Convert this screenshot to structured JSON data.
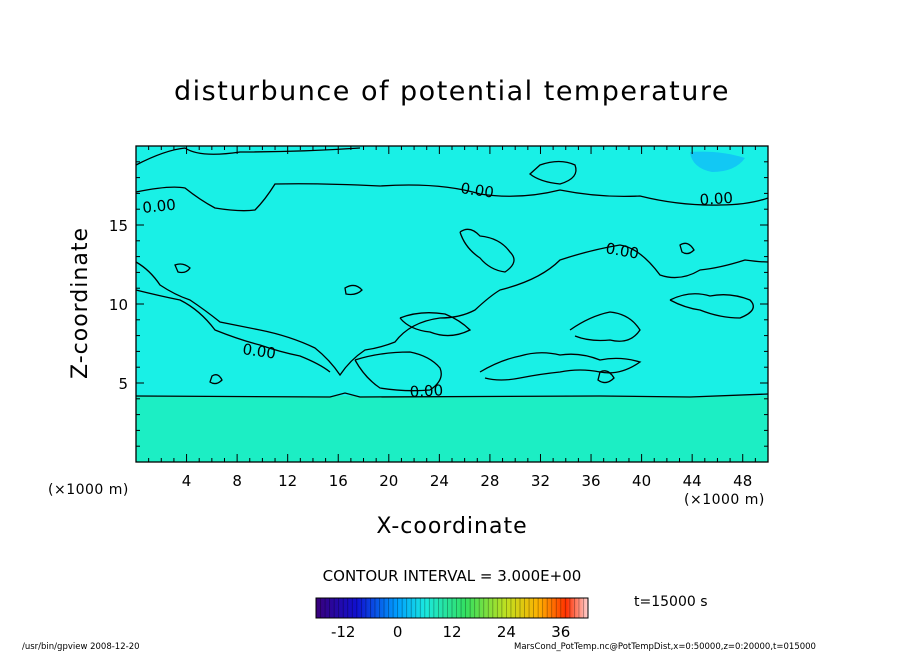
{
  "chart_data": {
    "type": "heatmap",
    "title": "disturbunce of potential temperature",
    "xlabel": "X-coordinate",
    "ylabel": "Z-coordinate",
    "x_unit": "(×1000 m)",
    "xlim": [
      0,
      50
    ],
    "ylim": [
      0,
      20
    ],
    "x_ticks": [
      "4",
      "8",
      "12",
      "16",
      "20",
      "24",
      "28",
      "32",
      "36",
      "40",
      "44",
      "48"
    ],
    "y_ticks": [
      "5",
      "10",
      "15"
    ],
    "contour_label": "0.00",
    "contour_interval": "CONTOUR INTERVAL = 3.000E+00",
    "colorbar": {
      "tick_labels": [
        "-12",
        "0",
        "12",
        "24",
        "36"
      ],
      "range": [
        -18,
        42
      ]
    },
    "time_label": "t=15000 s",
    "zero_contour_regions": [
      "lower layer boundary near z=4.2",
      "upper layer boundaries between z=8 and z=19"
    ]
  },
  "footer": {
    "left": "/usr/bin/gpview   2008-12-20",
    "right": "MarsCond_PotTemp.nc@PotTempDist,x=0:50000,z=0:20000,t=015000"
  },
  "colors": {
    "upper_field": "#19f0e6",
    "lower_field": "#1ceec4",
    "axis": "#000000"
  }
}
